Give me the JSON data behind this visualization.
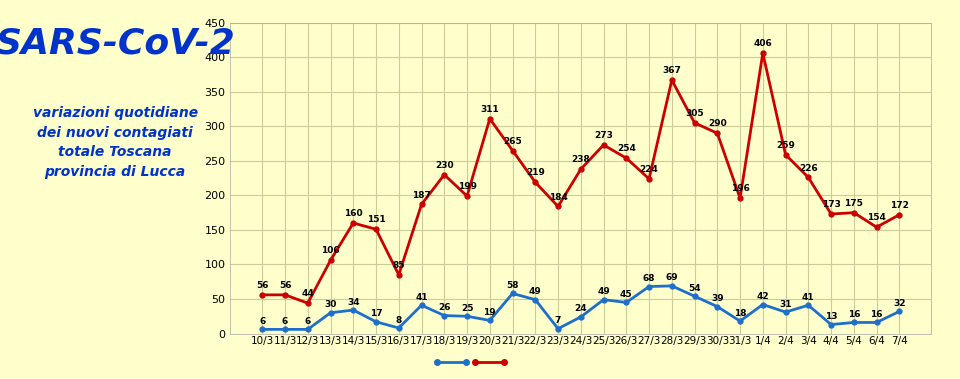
{
  "labels": [
    "10/3",
    "11/3",
    "12/3",
    "13/3",
    "14/3",
    "15/3",
    "16/3",
    "17/3",
    "18/3",
    "19/3",
    "20/3",
    "21/3",
    "22/3",
    "23/3",
    "24/3",
    "25/3",
    "26/3",
    "27/3",
    "28/3",
    "29/3",
    "30/3",
    "31/3",
    "1/4",
    "2/4",
    "3/4",
    "4/4",
    "5/4",
    "6/4",
    "7/4"
  ],
  "toscana": [
    56,
    56,
    44,
    106,
    160,
    151,
    85,
    187,
    230,
    199,
    311,
    265,
    219,
    184,
    238,
    273,
    254,
    224,
    367,
    305,
    290,
    196,
    406,
    259,
    226,
    173,
    175,
    154,
    172
  ],
  "lucca": [
    6,
    6,
    6,
    30,
    34,
    17,
    8,
    41,
    26,
    25,
    19,
    58,
    49,
    7,
    24,
    49,
    45,
    68,
    69,
    54,
    39,
    18,
    42,
    31,
    41,
    13,
    16,
    16,
    32
  ],
  "toscana_color": "#cc0000",
  "lucca_color": "#1e6fcc",
  "bg_color": "#ffffcc",
  "grid_color": "#cccc99",
  "title_main": "SARS-CoV-2",
  "title_sub": "variazioni quotidiane\ndei nuovi contagiati\ntotale Toscana\nprovincia di Lucca",
  "title_main_color": "#0033cc",
  "title_sub_color": "#0033cc",
  "ylim": [
    0,
    450
  ],
  "yticks": [
    0,
    50,
    100,
    150,
    200,
    250,
    300,
    350,
    400,
    450
  ]
}
